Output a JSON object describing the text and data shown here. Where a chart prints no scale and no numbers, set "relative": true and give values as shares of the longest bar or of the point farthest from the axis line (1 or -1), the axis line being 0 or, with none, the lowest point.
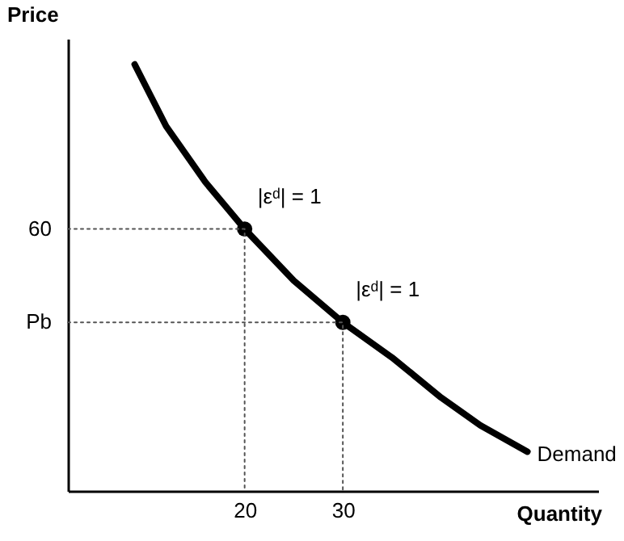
{
  "chart_data": {
    "type": "line",
    "xlabel": "Quantity",
    "ylabel": "Price",
    "xlim": [
      2,
      56
    ],
    "xticks": [
      20,
      30
    ],
    "relative": true,
    "grid": false,
    "marker": "none",
    "series": [
      {
        "name": "Demand",
        "color": "#000000",
        "line_style": "solid",
        "x": [
          8.8,
          12,
          16,
          20,
          25,
          30,
          35,
          40,
          44,
          48.8
        ],
        "values": [
          1,
          0.855,
          0.724,
          0.614,
          0.493,
          0.395,
          0.313,
          0.219,
          0.154,
          0.092
        ]
      },
      {
        "type": "scatter",
        "color": "#000000",
        "marker": "circle",
        "x": [
          20,
          30
        ],
        "values": [
          0.614,
          0.395
        ]
      },
      {
        "color": "#555555",
        "line_style": "dotted",
        "x": [
          2,
          20,
          20
        ],
        "values": [
          0.614,
          0.614,
          0
        ]
      },
      {
        "color": "#555555",
        "line_style": "dotted",
        "x": [
          2,
          30,
          30
        ],
        "values": [
          0.395,
          0.395,
          0
        ]
      }
    ],
    "annotations": [
      {
        "text": "60",
        "x": 2,
        "y": 0.614
      },
      {
        "text": "Pb",
        "x": 2,
        "y": 0.395
      },
      {
        "text": "|εᵈ| = 1",
        "x": 20,
        "y": 0.614
      },
      {
        "text": "|εᵈ| = 1",
        "x": 30,
        "y": 0.395
      }
    ]
  }
}
